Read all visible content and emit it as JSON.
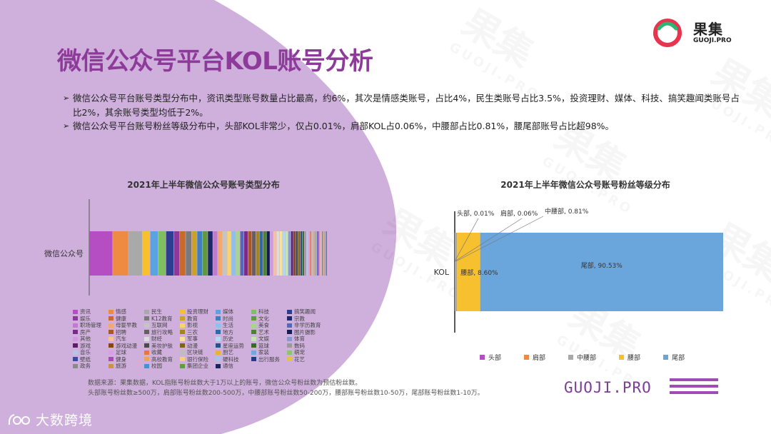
{
  "brand": {
    "name_cn": "果集",
    "name_en": "GUOJI.PRO",
    "footer_brand": "GUOJI.PRO",
    "footer_partner": "大数跨境"
  },
  "header": {
    "title": "微信公众号平台KOL账号分析"
  },
  "bullets": [
    "微信公众号平台账号类型分布中，资讯类型账号数量占比最高，约6%，其次是情感类账号，占比4%，民生类账号占比3.5%，投资理财、媒体、科技、搞笑趣闻类账号占比2%，其余账号类型均低于2%。",
    "微信公众号平台账号粉丝等级分布中，头部KOL非常少，仅占0.01%，肩部KOL占0.06%，中腰部占比0.81%，腰尾部账号占比超98%。"
  ],
  "watermark": {
    "big": "果集",
    "small": "GUOJI.PRO"
  },
  "colors": {
    "accent": "#8e3a9a",
    "lavender": "#cfb0dc"
  },
  "chart_data": [
    {
      "type": "bar",
      "orientation": "horizontal-stacked",
      "title": "2021年上半年微信公众号账号类型分布",
      "category": "微信公众号",
      "series": [
        {
          "name": "资讯",
          "value": 6.0,
          "color": "#b44ec2"
        },
        {
          "name": "情感",
          "value": 4.0,
          "color": "#ef8a43"
        },
        {
          "name": "民生",
          "value": 3.5,
          "color": "#a9a9a9"
        },
        {
          "name": "投资理财",
          "value": 2.0,
          "color": "#f6c02e"
        },
        {
          "name": "媒体",
          "value": 2.0,
          "color": "#5ba3e0"
        },
        {
          "name": "科技",
          "value": 2.0,
          "color": "#7fbf5f"
        },
        {
          "name": "搞笑趣闻",
          "value": 2.0,
          "color": "#2c3e8f"
        },
        {
          "name": "娱乐",
          "value": 1.5,
          "color": "#8b3a99"
        },
        {
          "name": "健康",
          "value": 1.5,
          "color": "#c86a2a"
        },
        {
          "name": "K12教育",
          "value": 1.5,
          "color": "#7a7a7a"
        },
        {
          "name": "教育",
          "value": 1.4,
          "color": "#c9a227"
        },
        {
          "name": "时尚",
          "value": 1.4,
          "color": "#3f7fc0"
        },
        {
          "name": "文化",
          "value": 1.3,
          "color": "#5f9a3f"
        },
        {
          "name": "宗教",
          "value": 1.3,
          "color": "#1c2a6b"
        },
        {
          "name": "职场管理",
          "value": 1.2,
          "color": "#c07ad0"
        },
        {
          "name": "母婴早教",
          "value": 1.2,
          "color": "#f4a86e"
        },
        {
          "name": "互联网",
          "value": 1.2,
          "color": "#c5c5c5"
        },
        {
          "name": "影视",
          "value": 1.1,
          "color": "#f8d46a"
        },
        {
          "name": "生活",
          "value": 1.1,
          "color": "#8cc1ec"
        },
        {
          "name": "美食",
          "value": 1.1,
          "color": "#a8d48e"
        },
        {
          "name": "非学历教育",
          "value": 1.0,
          "color": "#5667b3"
        },
        {
          "name": "房产",
          "value": 1.0,
          "color": "#7b2a88"
        },
        {
          "name": "招聘",
          "value": 1.0,
          "color": "#a85a20"
        },
        {
          "name": "旅行攻略",
          "value": 1.0,
          "color": "#616161"
        },
        {
          "name": "三农",
          "value": 0.9,
          "color": "#a3841d"
        },
        {
          "name": "地方",
          "value": 0.9,
          "color": "#2f6aa8"
        },
        {
          "name": "艺术",
          "value": 0.9,
          "color": "#4d8433"
        },
        {
          "name": "图片摄影",
          "value": 0.9,
          "color": "#141e52"
        },
        {
          "name": "其他",
          "value": 0.8,
          "color": "#d19ade"
        },
        {
          "name": "汽车",
          "value": 0.8,
          "color": "#f7c19a"
        },
        {
          "name": "财经",
          "value": 0.8,
          "color": "#dcdcdc"
        },
        {
          "name": "军事",
          "value": 0.8,
          "color": "#fbe29c"
        },
        {
          "name": "历史",
          "value": 0.7,
          "color": "#b5d8f4"
        },
        {
          "name": "文娱",
          "value": 0.7,
          "color": "#c6e3b5"
        },
        {
          "name": "体育",
          "value": 0.7,
          "color": "#8a96cc"
        },
        {
          "name": "游戏",
          "value": 0.6,
          "color": "#5c1f66"
        },
        {
          "name": "游戏动漫",
          "value": 0.6,
          "color": "#874614"
        },
        {
          "name": "美妆护肤",
          "value": 0.6,
          "color": "#4a4a4a"
        },
        {
          "name": "动漫",
          "value": 0.6,
          "color": "#7d6514"
        },
        {
          "name": "星座运势",
          "value": 0.5,
          "color": "#245487"
        },
        {
          "name": "篮球",
          "value": 0.5,
          "color": "#3a6a26"
        },
        {
          "name": "数码",
          "value": 0.5,
          "color": "#9a9a9a"
        },
        {
          "name": "音乐",
          "value": 0.5,
          "color": "#b9c3e6"
        },
        {
          "name": "足球",
          "value": 0.4,
          "color": "#d8a0e2"
        },
        {
          "name": "收藏",
          "value": 0.4,
          "color": "#e87a30"
        },
        {
          "name": "区块链",
          "value": 0.4,
          "color": "#bdbdbd"
        },
        {
          "name": "厨艺",
          "value": 0.4,
          "color": "#e8b42a"
        },
        {
          "name": "家装",
          "value": 0.3,
          "color": "#6fa9dd"
        },
        {
          "name": "萌宠",
          "value": 0.3,
          "color": "#8fc46e"
        },
        {
          "name": "壁纸",
          "value": 0.3,
          "color": "#3b4a9e"
        },
        {
          "name": "健身",
          "value": 0.3,
          "color": "#a44db4"
        },
        {
          "name": "高校教育",
          "value": 0.3,
          "color": "#f0a060"
        },
        {
          "name": "银行保险",
          "value": 0.2,
          "color": "#f3d180"
        },
        {
          "name": "硬科技",
          "value": 0.2,
          "color": "#9fc9ea"
        },
        {
          "name": "出行服务",
          "value": 0.2,
          "color": "#2a3a80"
        },
        {
          "name": "花艺",
          "value": 0.2,
          "color": "#e2c050"
        },
        {
          "name": "政务",
          "value": 0.2,
          "color": "#8a8a8a"
        },
        {
          "name": "旅游",
          "value": 0.2,
          "color": "#c9934a"
        },
        {
          "name": "校园",
          "value": 0.2,
          "color": "#4a8fd0"
        },
        {
          "name": "集团企业",
          "value": 0.1,
          "color": "#5aa040"
        },
        {
          "name": "通信",
          "value": 0.1,
          "color": "#1a2560"
        }
      ]
    },
    {
      "type": "bar",
      "orientation": "horizontal-stacked",
      "title": "2021年上半年微信公众号账号粉丝等级分布",
      "category": "KOL",
      "series": [
        {
          "name": "头部",
          "value": 0.01,
          "label": "头部, 0.01%",
          "color": "#b44ec2"
        },
        {
          "name": "肩部",
          "value": 0.06,
          "label": "肩部, 0.06%",
          "color": "#ef8a43"
        },
        {
          "name": "中腰部",
          "value": 0.81,
          "label": "中腰部, 0.81%",
          "color": "#a9a9a9"
        },
        {
          "name": "腰部",
          "value": 8.6,
          "label": "腰部, 8.60%",
          "color": "#f6c02e"
        },
        {
          "name": "尾部",
          "value": 90.53,
          "label": "尾部, 90.53%",
          "color": "#6aa6dc"
        }
      ],
      "legend_position": "bottom"
    }
  ],
  "source": {
    "line1": "数据来源：果集数据，KOL指账号粉丝数大于1万以上的账号，微信公众号粉丝数为预估粉丝数。",
    "line2": "头部账号粉丝数≥500万，肩部账号粉丝数200-500万，中腰部账号粉丝数50-200万，腰部账号粉丝数10-50万，尾部账号粉丝数1-10万。"
  }
}
